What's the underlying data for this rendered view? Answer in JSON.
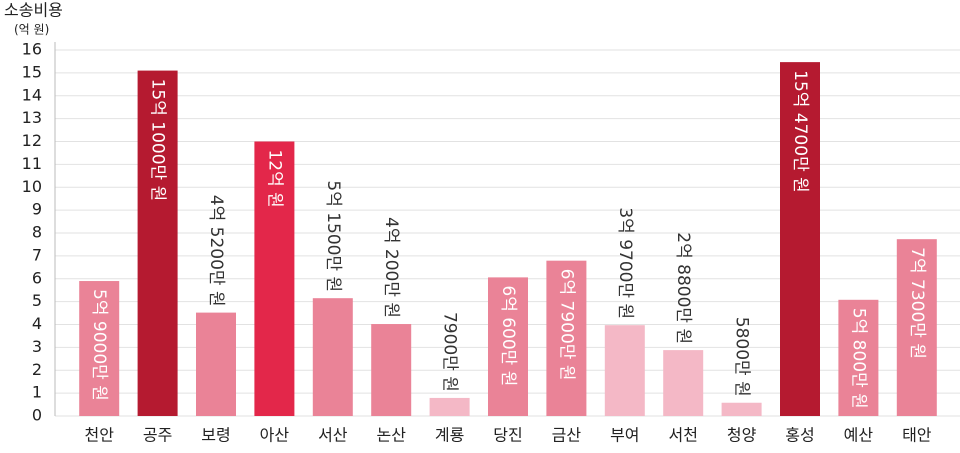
{
  "chart_data": {
    "type": "bar",
    "y_label": "소송비용",
    "y_unit": "(억 원)",
    "categories": [
      "천안",
      "공주",
      "보령",
      "아산",
      "서산",
      "논산",
      "계룡",
      "당진",
      "금산",
      "부여",
      "서천",
      "청양",
      "홍성",
      "예산",
      "태안"
    ],
    "values": [
      5.9,
      15.1,
      4.52,
      12,
      5.15,
      4.02,
      0.79,
      6.06,
      6.79,
      3.97,
      2.88,
      0.58,
      15.47,
      5.08,
      7.73
    ],
    "value_labels": [
      "5억 9000만 원",
      "15억 1000만 원",
      "4억 5200만 원",
      "12억 원",
      "5억 1500만 원",
      "4억 200만 원",
      "7900만 원",
      "6억 600만 원",
      "6억 7900만 원",
      "3억 9700만 원",
      "2억 8800만 원",
      "5800만 원",
      "15억 4700만 원",
      "5억 800만 원",
      "7억 7300만 원"
    ],
    "value_label_positions": [
      "inside",
      "inside",
      "above",
      "inside",
      "above",
      "above",
      "above",
      "inside",
      "inside",
      "above",
      "above",
      "above",
      "inside",
      "inside",
      "inside"
    ],
    "colors": [
      "#ea8397",
      "#b51a30",
      "#ea8397",
      "#e3274a",
      "#ea8397",
      "#ea8397",
      "#f4b8c6",
      "#ea8397",
      "#ea8397",
      "#f4b8c6",
      "#f4b8c6",
      "#f4b8c6",
      "#b51a30",
      "#ea8397",
      "#ea8397"
    ],
    "ylim": [
      0,
      16
    ],
    "yticks": [
      0,
      1,
      2,
      3,
      4,
      5,
      6,
      7,
      8,
      9,
      10,
      11,
      12,
      13,
      14,
      15,
      16
    ],
    "grid": true
  }
}
